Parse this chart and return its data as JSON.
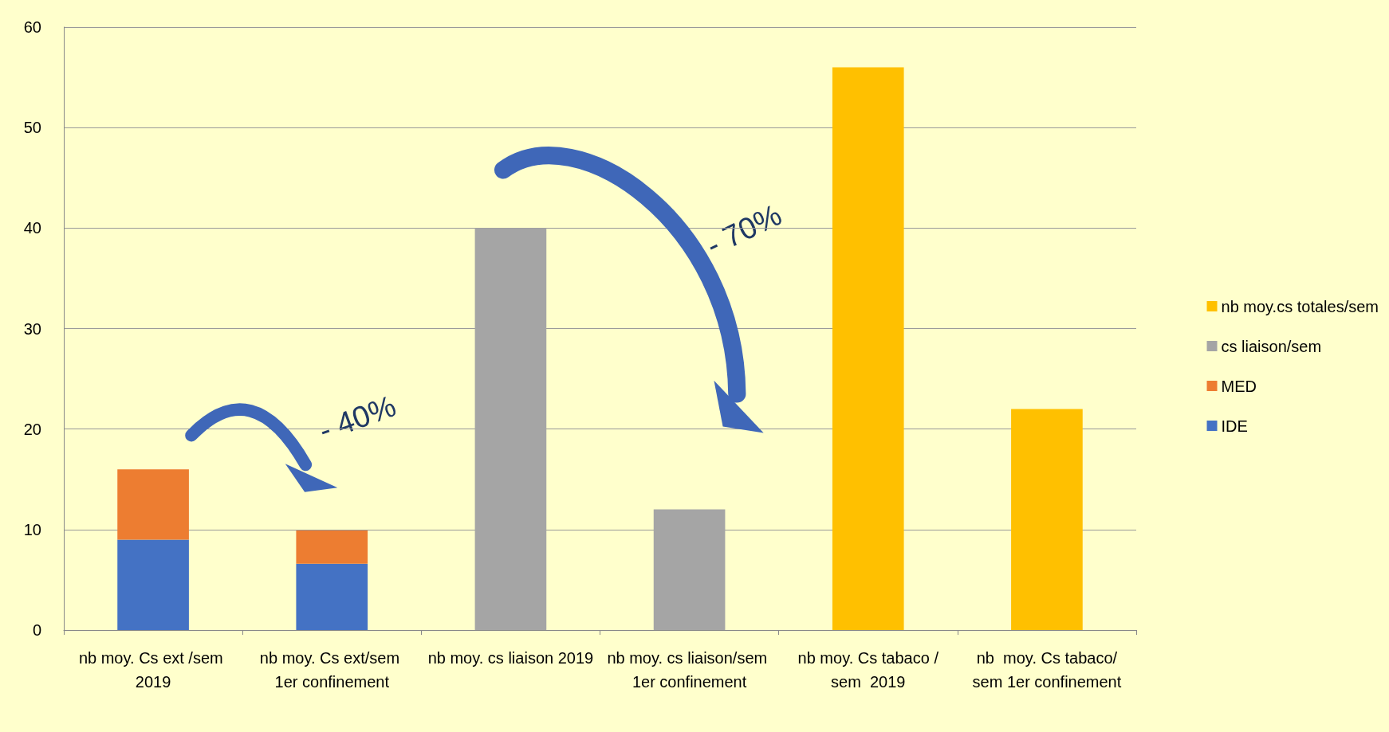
{
  "chart_data": {
    "type": "bar",
    "stacked": true,
    "categories": [
      "nb moy. Cs ext /sem 2019",
      "nb moy. Cs ext/sem 1er confinement",
      "nb moy. cs liaison 2019",
      "nb moy. cs liaison/sem 1er confinement",
      "nb moy. Cs tabaco /sem  2019",
      "nb  moy. Cs tabaco/sem 1er confinement"
    ],
    "series": [
      {
        "name": "IDE",
        "color": "#4472c4",
        "values": [
          9,
          6.6,
          null,
          null,
          null,
          null
        ]
      },
      {
        "name": "MED",
        "color": "#ed7d31",
        "values": [
          7,
          3.3,
          null,
          null,
          null,
          null
        ]
      },
      {
        "name": "cs liaison/sem",
        "color": "#a5a5a5",
        "values": [
          null,
          null,
          40,
          12,
          null,
          null
        ]
      },
      {
        "name": "nb moy.cs totales/sem",
        "color": "#ffc000",
        "values": [
          null,
          null,
          null,
          null,
          56,
          22
        ]
      }
    ],
    "ylim": [
      0,
      60
    ],
    "yticks": [
      0,
      10,
      20,
      30,
      40,
      50,
      60
    ],
    "grid": "y",
    "legend": "right",
    "annotations": [
      "- 40%",
      "- 70%"
    ]
  }
}
